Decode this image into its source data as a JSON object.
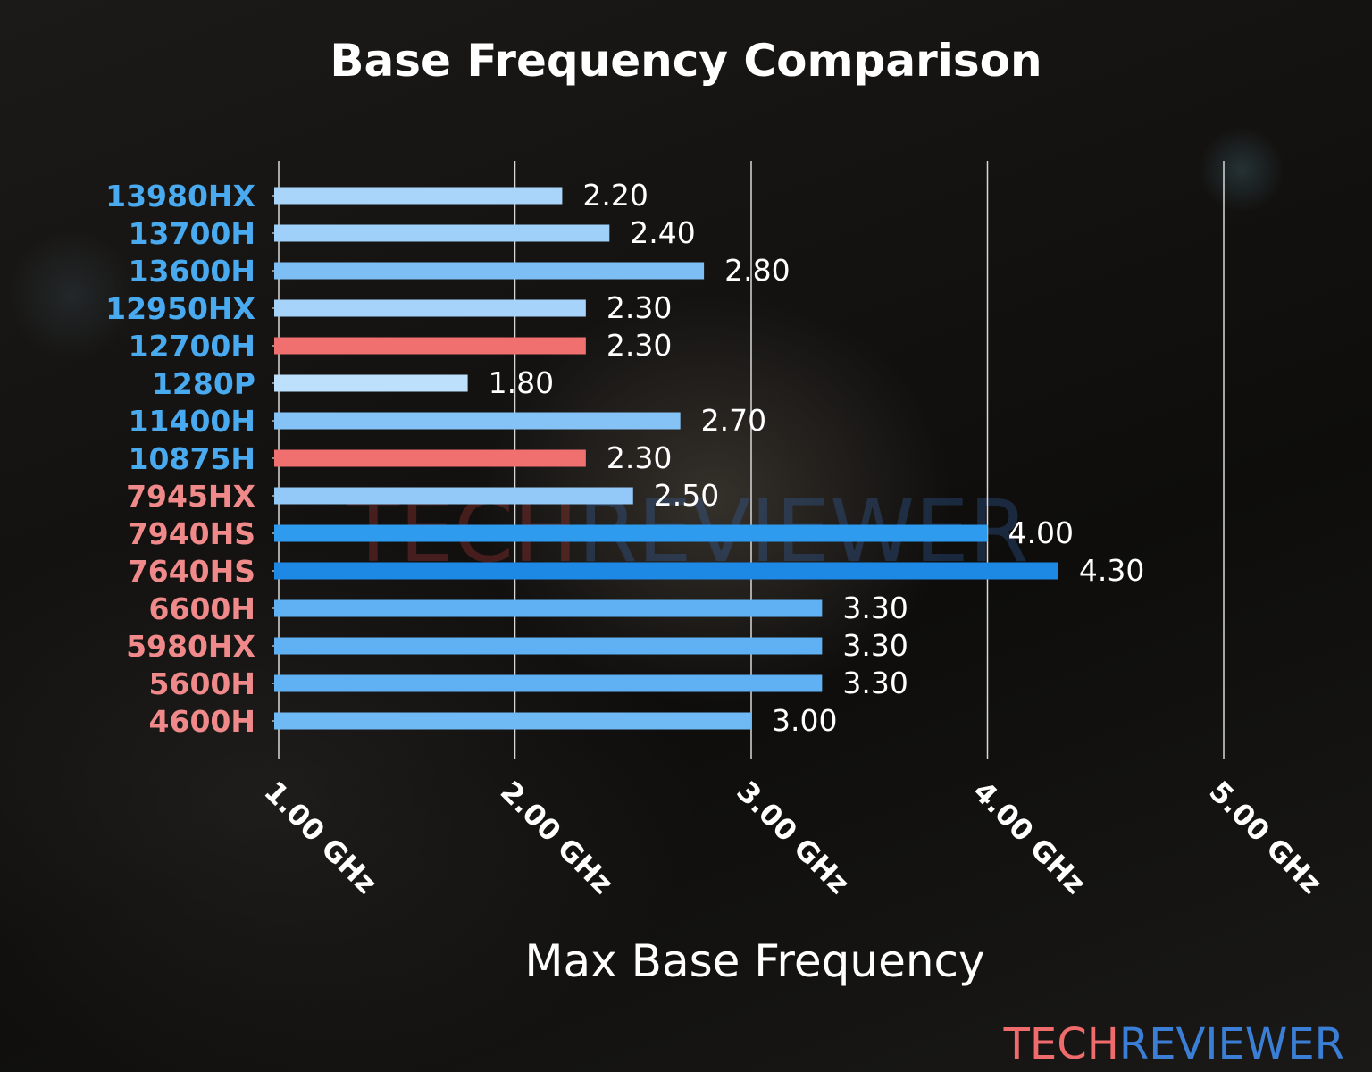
{
  "chart_data": {
    "type": "bar",
    "orientation": "horizontal",
    "title": "Base Frequency Comparison",
    "xlabel": "Max Base Frequency",
    "ylabel": "",
    "xlim": [
      1.0,
      5.0
    ],
    "xticks": [
      1.0,
      2.0,
      3.0,
      4.0,
      5.0
    ],
    "xtick_labels": [
      "1.00 GHz",
      "2.00 GHz",
      "3.00 GHz",
      "4.00 GHz",
      "5.00 GHz"
    ],
    "grid": "vertical",
    "categories": [
      "13980HX",
      "13700H",
      "13600H",
      "12950HX",
      "12700H",
      "1280P",
      "11400H",
      "10875H",
      "7945HX",
      "7940HS",
      "7640HS",
      "6600H",
      "5980HX",
      "5600H",
      "4600H"
    ],
    "values": [
      2.2,
      2.4,
      2.8,
      2.3,
      2.3,
      1.8,
      2.7,
      2.3,
      2.5,
      4.0,
      4.3,
      3.3,
      3.3,
      3.3,
      3.0
    ],
    "data_labels": [
      "2.20",
      "2.40",
      "2.80",
      "2.30",
      "2.30",
      "1.80",
      "2.70",
      "2.30",
      "2.50",
      "4.00",
      "4.30",
      "3.30",
      "3.30",
      "3.30",
      "3.00"
    ],
    "bar_colors": [
      "#a9d5fa",
      "#9fd0f9",
      "#7dbff5",
      "#a5d3fa",
      "#f07070",
      "#bde0fc",
      "#85c3f6",
      "#f07070",
      "#93c9f8",
      "#2e9bef",
      "#1e88e5",
      "#5fb1f3",
      "#5fb1f3",
      "#5fb1f3",
      "#6fb9f4"
    ],
    "label_colors": [
      "#4aaaf0",
      "#4aaaf0",
      "#4aaaf0",
      "#4aaaf0",
      "#4aaaf0",
      "#4aaaf0",
      "#4aaaf0",
      "#4aaaf0",
      "#f08a8a",
      "#f08a8a",
      "#f08a8a",
      "#f08a8a",
      "#f08a8a",
      "#f08a8a",
      "#f08a8a"
    ]
  },
  "watermark": {
    "part1": "TECH",
    "part2": "REVIEWER",
    "color1": "#f06b6b",
    "color2": "#3a7fd5"
  }
}
